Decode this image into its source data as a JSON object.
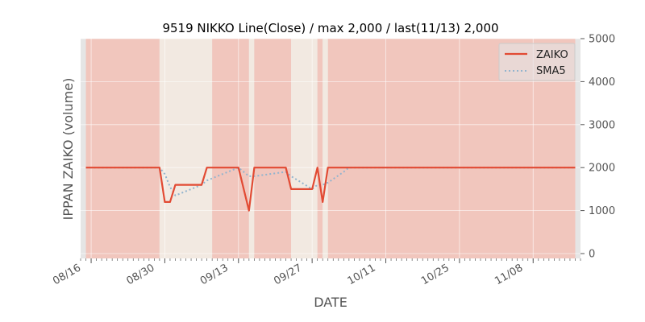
{
  "colors": {
    "plot_background": "#e5e5e5",
    "zaiko_line": "#e24a33",
    "sma5_line": "#92b4ce",
    "high_band": "#f1c6bd",
    "low_band": "#f2e9e1",
    "grid": "#ffffff",
    "axis_text": "#555555",
    "title_text": "#000000"
  },
  "chart_data": {
    "type": "line",
    "title": "9519 NIKKO Line(Close) / max 2,000 / last(11/13) 2,000",
    "xlabel": "DATE",
    "ylabel": "IPPAN ZAIKO (volume)",
    "x_tick_labels": [
      "08/16",
      "08/30",
      "09/13",
      "09/27",
      "10/11",
      "10/25",
      "11/08"
    ],
    "y_tick_labels": [
      "0",
      "1000",
      "2000",
      "3000",
      "4000",
      "5000"
    ],
    "ylim": [
      0,
      5000
    ],
    "y_ticks": [
      0,
      1000,
      2000,
      3000,
      4000,
      5000
    ],
    "xlim": [
      "2023-08-14",
      "2023-11-17"
    ],
    "x_tick_dates": [
      "2023-08-16",
      "2023-08-30",
      "2023-09-13",
      "2023-09-27",
      "2023-10-11",
      "2023-10-25",
      "2023-11-08"
    ],
    "grid": true,
    "legend_position": "top-right",
    "series": [
      {
        "name": "ZAIKO",
        "style": "solid",
        "points": [
          [
            "2023-08-15",
            2000
          ],
          [
            "2023-08-29",
            2000
          ],
          [
            "2023-08-30",
            1200
          ],
          [
            "2023-08-31",
            1200
          ],
          [
            "2023-09-01",
            1600
          ],
          [
            "2023-09-06",
            1600
          ],
          [
            "2023-09-07",
            2000
          ],
          [
            "2023-09-13",
            2000
          ],
          [
            "2023-09-15",
            1000
          ],
          [
            "2023-09-16",
            2000
          ],
          [
            "2023-09-22",
            2000
          ],
          [
            "2023-09-23",
            1500
          ],
          [
            "2023-09-27",
            1500
          ],
          [
            "2023-09-28",
            2000
          ],
          [
            "2023-09-29",
            1200
          ],
          [
            "2023-09-30",
            2000
          ],
          [
            "2023-11-16",
            2000
          ]
        ]
      },
      {
        "name": "SMA5",
        "style": "dotted",
        "points": [
          [
            "2023-08-15",
            2000
          ],
          [
            "2023-08-29",
            2000
          ],
          [
            "2023-08-30",
            1850
          ],
          [
            "2023-08-31",
            1550
          ],
          [
            "2023-09-01",
            1350
          ],
          [
            "2023-09-06",
            1600
          ],
          [
            "2023-09-07",
            1700
          ],
          [
            "2023-09-13",
            2000
          ],
          [
            "2023-09-15",
            1800
          ],
          [
            "2023-09-16",
            1800
          ],
          [
            "2023-09-22",
            1900
          ],
          [
            "2023-09-23",
            1800
          ],
          [
            "2023-09-27",
            1500
          ],
          [
            "2023-09-28",
            1600
          ],
          [
            "2023-09-29",
            1600
          ],
          [
            "2023-09-30",
            1650
          ],
          [
            "2023-10-03",
            1900
          ],
          [
            "2023-10-04",
            2000
          ],
          [
            "2023-11-16",
            2000
          ]
        ]
      }
    ],
    "shaded_periods": [
      {
        "kind": "high",
        "from": "2023-08-15",
        "to": "2023-08-29"
      },
      {
        "kind": "low",
        "from": "2023-08-29",
        "to": "2023-09-08"
      },
      {
        "kind": "high",
        "from": "2023-09-08",
        "to": "2023-09-15"
      },
      {
        "kind": "low",
        "from": "2023-09-15",
        "to": "2023-09-16"
      },
      {
        "kind": "high",
        "from": "2023-09-16",
        "to": "2023-09-23"
      },
      {
        "kind": "low",
        "from": "2023-09-23",
        "to": "2023-09-28"
      },
      {
        "kind": "high",
        "from": "2023-09-28",
        "to": "2023-09-29"
      },
      {
        "kind": "low",
        "from": "2023-09-29",
        "to": "2023-09-30"
      },
      {
        "kind": "high",
        "from": "2023-09-30",
        "to": "2023-11-16"
      }
    ]
  }
}
